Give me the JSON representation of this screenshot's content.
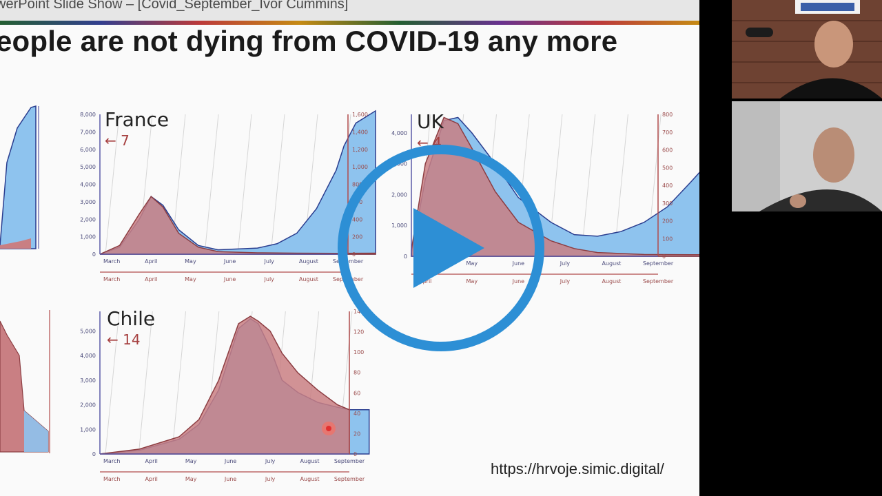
{
  "window": {
    "title": "werPoint Slide Show – [Covid_September_Ivor Cummins]"
  },
  "slide": {
    "title": "eople are not dying from COVID-19 any more",
    "url": "https://hrvoje.simic.digital/"
  },
  "colors": {
    "cases": "#8ec3ee",
    "deaths": "#c97f83",
    "play": "#2d8fd5"
  },
  "icons": {
    "play": "play-icon",
    "cursor": "pointer-highlight-icon"
  },
  "participants": [
    {
      "name": "participant-video-1"
    },
    {
      "name": "participant-video-2"
    }
  ],
  "chart_data": [
    {
      "type": "area",
      "country": "France",
      "lag_label": "← 7",
      "x_ticks": [
        "March",
        "April",
        "May",
        "June",
        "July",
        "August",
        "September"
      ],
      "y_left_ticks": [
        "0",
        "1,000",
        "2,000",
        "3,000",
        "4,000",
        "5,000",
        "6,000",
        "7,000",
        "8,000"
      ],
      "y_right_ticks": [
        "0",
        "200",
        "400",
        "600",
        "800",
        "1,000",
        "1,200",
        "1,400",
        "1,600"
      ],
      "series": [
        {
          "color": "cases",
          "x": [
            0,
            0.5,
            1,
            1.3,
            1.6,
            2,
            2.5,
            3,
            3.5,
            4,
            4.5,
            5,
            5.5,
            6,
            6.2,
            6.5,
            7
          ],
          "y": [
            0,
            400,
            2000,
            3300,
            2800,
            1400,
            500,
            250,
            300,
            350,
            600,
            1200,
            2600,
            4800,
            6200,
            7500,
            8200
          ]
        },
        {
          "color": "deaths",
          "x": [
            0,
            0.5,
            1,
            1.3,
            1.6,
            2,
            2.5,
            3,
            4,
            5,
            6,
            7
          ],
          "y": [
            0,
            500,
            2300,
            3300,
            2700,
            1200,
            400,
            150,
            80,
            60,
            50,
            60
          ]
        }
      ],
      "ylim": [
        0,
        8000
      ]
    },
    {
      "type": "area",
      "country": "UK",
      "lag_label": "← 4",
      "x_ticks": [
        "April",
        "May",
        "June",
        "July",
        "August",
        "September"
      ],
      "y_left_ticks": [
        "0",
        "1,000",
        "2,000",
        "3,000",
        "4,000"
      ],
      "y_right_ticks": [
        "0",
        "100",
        "200",
        "300",
        "400",
        "500",
        "600",
        "700",
        "800"
      ],
      "series": [
        {
          "color": "cases",
          "x": [
            0,
            0.3,
            0.7,
            1,
            1.3,
            1.8,
            2.3,
            3,
            3.5,
            4,
            4.5,
            5,
            5.5,
            6,
            6.3
          ],
          "y": [
            100,
            2500,
            4400,
            4500,
            4000,
            3000,
            1900,
            1100,
            700,
            650,
            800,
            1100,
            1600,
            2400,
            2900
          ]
        },
        {
          "color": "deaths",
          "x": [
            0,
            0.3,
            0.7,
            1,
            1.3,
            1.8,
            2.3,
            3,
            3.5,
            4,
            5,
            6,
            6.3
          ],
          "y": [
            200,
            3000,
            4500,
            4300,
            3500,
            2100,
            1100,
            500,
            250,
            120,
            60,
            50,
            50
          ]
        }
      ],
      "ylim": [
        0,
        4600
      ]
    },
    {
      "type": "area",
      "country": "Chile",
      "lag_label": "← 14",
      "x_ticks": [
        "March",
        "April",
        "May",
        "June",
        "July",
        "August",
        "September"
      ],
      "y_left_ticks": [
        "0",
        "1,000",
        "2,000",
        "3,000",
        "4,000",
        "5,000"
      ],
      "y_right_ticks": [
        "0",
        "20",
        "40",
        "60",
        "80",
        "100",
        "120",
        "140"
      ],
      "series": [
        {
          "color": "cases",
          "x": [
            0,
            1,
            2,
            2.5,
            3,
            3.5,
            3.8,
            4,
            4.3,
            4.6,
            5,
            5.5,
            6,
            6.3,
            6.5,
            6.8
          ],
          "y": [
            0,
            150,
            600,
            1200,
            2600,
            5100,
            5500,
            5300,
            4300,
            3000,
            2500,
            2100,
            1900,
            1800,
            1800,
            1800
          ]
        },
        {
          "color": "deaths",
          "x": [
            0,
            1,
            2,
            2.5,
            3,
            3.5,
            3.8,
            4,
            4.3,
            4.6,
            5,
            5.5,
            6,
            6.3
          ],
          "y": [
            0,
            200,
            700,
            1400,
            3000,
            5300,
            5600,
            5400,
            5000,
            4100,
            3300,
            2600,
            2000,
            1800
          ]
        }
      ],
      "ylim": [
        0,
        5800
      ]
    }
  ]
}
